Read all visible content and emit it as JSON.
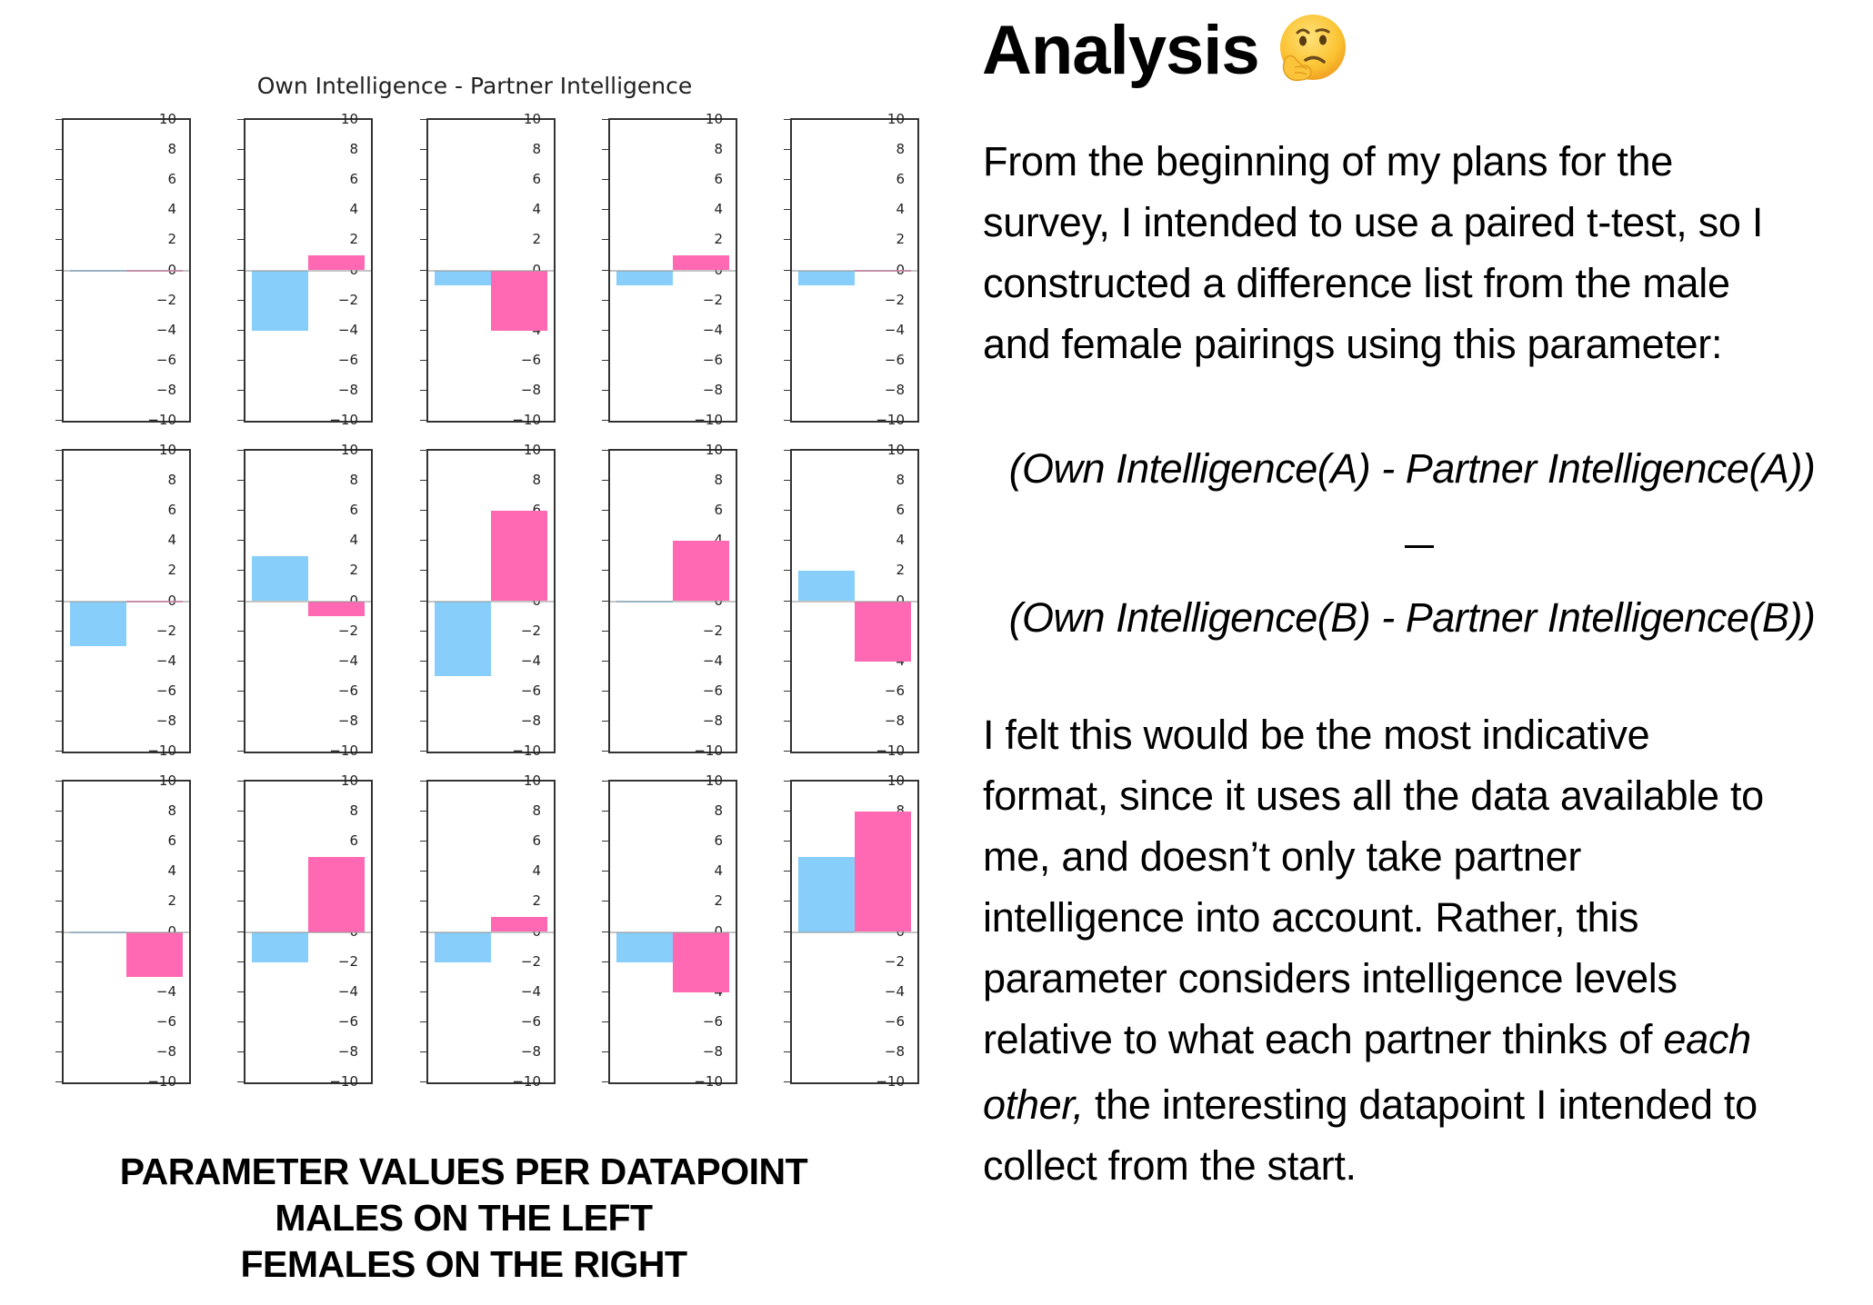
{
  "figure": {
    "title": "Own Intelligence - Partner Intelligence",
    "caption": [
      "PARAMETER VALUES PER DATAPOINT",
      "MALES ON THE LEFT",
      "FEMALES ON THE RIGHT"
    ],
    "colors": {
      "male": "#87CEFA",
      "female": "#FF69B4"
    },
    "yticks": [
      "10",
      "8",
      "6",
      "4",
      "2",
      "0",
      "−2",
      "−4",
      "−6",
      "−8",
      "−10"
    ]
  },
  "chart_data": {
    "type": "bar",
    "title": "Own Intelligence - Partner Intelligence",
    "layout": "3x5 grid of subplots, one per datapoint (couple)",
    "categories": [
      "Male",
      "Female"
    ],
    "ylim": [
      -10,
      10
    ],
    "yticks": [
      -10,
      -8,
      -6,
      -4,
      -2,
      0,
      2,
      4,
      6,
      8,
      10
    ],
    "grid": false,
    "legend": "none (caption: males on the left, females on the right)",
    "subplots": [
      {
        "row": 1,
        "col": 1,
        "male": 0,
        "female": 0
      },
      {
        "row": 1,
        "col": 2,
        "male": -4,
        "female": 1
      },
      {
        "row": 1,
        "col": 3,
        "male": -1,
        "female": -4
      },
      {
        "row": 1,
        "col": 4,
        "male": -1,
        "female": 1
      },
      {
        "row": 1,
        "col": 5,
        "male": -1,
        "female": 0
      },
      {
        "row": 2,
        "col": 1,
        "male": -3,
        "female": 0
      },
      {
        "row": 2,
        "col": 2,
        "male": 3,
        "female": -1
      },
      {
        "row": 2,
        "col": 3,
        "male": -5,
        "female": 6
      },
      {
        "row": 2,
        "col": 4,
        "male": 0,
        "female": 4
      },
      {
        "row": 2,
        "col": 5,
        "male": 2,
        "female": -4
      },
      {
        "row": 3,
        "col": 1,
        "male": 0,
        "female": -3
      },
      {
        "row": 3,
        "col": 2,
        "male": -2,
        "female": 5
      },
      {
        "row": 3,
        "col": 3,
        "male": -2,
        "female": 1
      },
      {
        "row": 3,
        "col": 4,
        "male": -2,
        "female": -4
      },
      {
        "row": 3,
        "col": 5,
        "male": 5,
        "female": 8
      }
    ],
    "series": [
      {
        "name": "Male",
        "color": "#87CEFA",
        "values": [
          0,
          -4,
          -1,
          -1,
          -1,
          -3,
          3,
          -5,
          0,
          2,
          0,
          -2,
          -2,
          -2,
          5
        ]
      },
      {
        "name": "Female",
        "color": "#FF69B4",
        "values": [
          0,
          1,
          -4,
          1,
          0,
          0,
          -1,
          6,
          4,
          -4,
          -3,
          5,
          1,
          -4,
          8
        ]
      }
    ],
    "caption": "PARAMETER VALUES PER DATAPOINT / MALES ON THE LEFT / FEMALES ON THE RIGHT"
  },
  "analysis": {
    "heading": "Analysis",
    "heading_icon": "thinking-face-emoji",
    "paragraph1": [
      "From the beginning of my plans for the",
      "survey, I intended to use a paired t-test, so I",
      "constructed a difference list from the male",
      "and female pairings using this parameter:"
    ],
    "formula": {
      "line_a": "(Own Intelligence(A) - Partner Intelligence(A))",
      "operator": "–",
      "line_b": "(Own Intelligence(B) - Partner Intelligence(B))"
    },
    "paragraph2": [
      "I felt this would be the most indicative",
      "format, since it uses all the data available to",
      "me, and doesn’t only take partner",
      "intelligence into account. Rather, this",
      "parameter considers intelligence levels"
    ],
    "paragraph2_line6": {
      "normal": "relative to what each partner thinks of ",
      "italic": "each"
    },
    "paragraph2_line7": {
      "italic": "other,",
      "normal": " the interesting datapoint I intended to"
    },
    "paragraph2_line8": "collect from the start."
  }
}
